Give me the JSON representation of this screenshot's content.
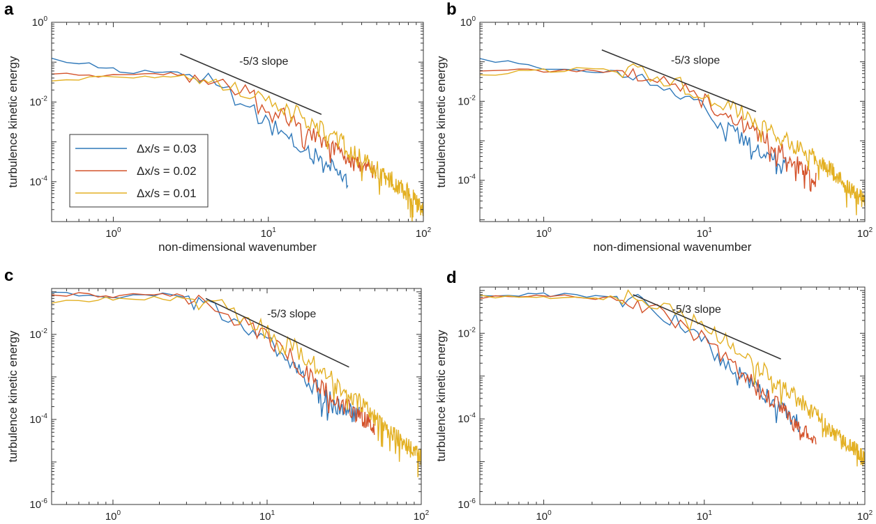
{
  "colors": {
    "dx003": "#2f78b9",
    "dx002": "#d4522a",
    "dx001": "#e3b023",
    "slope_line": "#333333",
    "axes": "#333333"
  },
  "chart_data": [
    {
      "panel": "a",
      "type": "line",
      "xscale": "log",
      "yscale": "log",
      "xlim": [
        0.4,
        100
      ],
      "ylim": [
        1e-05,
        1
      ],
      "xticks": [
        1,
        10,
        100
      ],
      "xtick_labels": [
        "10^0",
        "10^1",
        "10^2"
      ],
      "yticks": [
        0.0001,
        0.01,
        1
      ],
      "ytick_labels": [
        "10^-4",
        "10^-2",
        "10^0"
      ],
      "xlabel": "non-dimensional wavenumber",
      "ylabel": "turbulence kinetic energy",
      "legend": {
        "placement": "lower-left",
        "entries": [
          "Δx/s = 0.03",
          "Δx/s = 0.02",
          "Δx/s = 0.01"
        ]
      },
      "annotation": {
        "text": "-5/3 slope",
        "x": 6.5,
        "y": 0.085
      },
      "slope_line": {
        "x": [
          2.7,
          22
        ],
        "y": [
          0.16,
          0.0049
        ]
      },
      "series": [
        {
          "name": "Δx/s = 0.03",
          "key": "dx003",
          "x_end": 33,
          "noise": 0.22,
          "drops": true,
          "points": [
            [
              0.4,
              0.12
            ],
            [
              0.5,
              0.1
            ],
            [
              0.7,
              0.085
            ],
            [
              1,
              0.065
            ],
            [
              1.5,
              0.055
            ],
            [
              2,
              0.06
            ],
            [
              3,
              0.05
            ],
            [
              4,
              0.035
            ],
            [
              5,
              0.022
            ],
            [
              6,
              0.014
            ],
            [
              8,
              0.006
            ],
            [
              10,
              0.0028
            ],
            [
              13,
              0.0013
            ],
            [
              17,
              0.0006
            ],
            [
              22,
              0.00035
            ],
            [
              28,
              0.00022
            ],
            [
              33,
              0.0001
            ]
          ]
        },
        {
          "name": "Δx/s = 0.02",
          "key": "dx002",
          "x_end": 50,
          "noise": 0.2,
          "drops": true,
          "points": [
            [
              0.4,
              0.05
            ],
            [
              0.7,
              0.045
            ],
            [
              1,
              0.05
            ],
            [
              2,
              0.05
            ],
            [
              3,
              0.05
            ],
            [
              4,
              0.04
            ],
            [
              5,
              0.03
            ],
            [
              7,
              0.018
            ],
            [
              10,
              0.008
            ],
            [
              14,
              0.0035
            ],
            [
              20,
              0.0014
            ],
            [
              30,
              0.00045
            ],
            [
              40,
              0.00025
            ],
            [
              50,
              0.00018
            ]
          ]
        },
        {
          "name": "Δx/s = 0.01",
          "key": "dx001",
          "x_end": 100,
          "noise": 0.24,
          "drops": true,
          "points": [
            [
              0.4,
              0.035
            ],
            [
              0.7,
              0.04
            ],
            [
              1,
              0.045
            ],
            [
              2,
              0.045
            ],
            [
              3,
              0.045
            ],
            [
              4,
              0.04
            ],
            [
              6,
              0.025
            ],
            [
              8,
              0.015
            ],
            [
              10,
              0.01
            ],
            [
              15,
              0.005
            ],
            [
              20,
              0.0025
            ],
            [
              30,
              0.0009
            ],
            [
              40,
              0.00035
            ],
            [
              60,
              0.00012
            ],
            [
              80,
              5e-05
            ],
            [
              100,
              2e-05
            ]
          ]
        }
      ]
    },
    {
      "panel": "b",
      "type": "line",
      "xscale": "log",
      "yscale": "log",
      "xlim": [
        0.4,
        100
      ],
      "ylim": [
        9e-06,
        1
      ],
      "xticks": [
        1,
        10,
        100
      ],
      "xtick_labels": [
        "10^0",
        "10^1",
        "10^2"
      ],
      "yticks": [
        0.0001,
        0.01,
        1
      ],
      "ytick_labels": [
        "10^-4",
        "10^-2",
        "10^0"
      ],
      "xlabel": "non-dimensional wavenumber",
      "ylabel": "turbulence kinetic energy",
      "annotation": {
        "text": "-5/3 slope",
        "x": 6.2,
        "y": 0.09
      },
      "slope_line": {
        "x": [
          2.3,
          21
        ],
        "y": [
          0.2,
          0.0055
        ]
      },
      "series": [
        {
          "name": "Δx/s = 0.03",
          "key": "dx003",
          "x_end": 33,
          "noise": 0.2,
          "drops": true,
          "points": [
            [
              0.4,
              0.12
            ],
            [
              0.6,
              0.1
            ],
            [
              1,
              0.07
            ],
            [
              1.5,
              0.06
            ],
            [
              2,
              0.06
            ],
            [
              3,
              0.055
            ],
            [
              4,
              0.04
            ],
            [
              5,
              0.03
            ],
            [
              7,
              0.015
            ],
            [
              10,
              0.006
            ],
            [
              13,
              0.0025
            ],
            [
              17,
              0.0012
            ],
            [
              22,
              0.0006
            ],
            [
              28,
              0.00035
            ],
            [
              33,
              0.00025
            ]
          ]
        },
        {
          "name": "Δx/s = 0.02",
          "key": "dx002",
          "x_end": 50,
          "noise": 0.2,
          "drops": true,
          "points": [
            [
              0.4,
              0.06
            ],
            [
              0.7,
              0.06
            ],
            [
              1,
              0.06
            ],
            [
              2,
              0.06
            ],
            [
              3,
              0.06
            ],
            [
              4,
              0.05
            ],
            [
              6,
              0.03
            ],
            [
              8,
              0.018
            ],
            [
              10,
              0.01
            ],
            [
              15,
              0.004
            ],
            [
              20,
              0.0018
            ],
            [
              30,
              0.0006
            ],
            [
              40,
              0.00022
            ],
            [
              50,
              0.0001
            ]
          ]
        },
        {
          "name": "Δx/s = 0.01",
          "key": "dx001",
          "x_end": 100,
          "noise": 0.22,
          "drops": true,
          "points": [
            [
              0.4,
              0.05
            ],
            [
              0.7,
              0.055
            ],
            [
              1,
              0.06
            ],
            [
              2,
              0.065
            ],
            [
              3,
              0.06
            ],
            [
              4,
              0.05
            ],
            [
              6,
              0.035
            ],
            [
              8,
              0.022
            ],
            [
              10,
              0.015
            ],
            [
              15,
              0.007
            ],
            [
              20,
              0.0035
            ],
            [
              30,
              0.0012
            ],
            [
              40,
              0.0006
            ],
            [
              60,
              0.00022
            ],
            [
              80,
              6e-05
            ],
            [
              100,
              3e-05
            ]
          ]
        }
      ]
    },
    {
      "panel": "c",
      "type": "line",
      "xscale": "log",
      "yscale": "log",
      "xlim": [
        0.4,
        100
      ],
      "ylim": [
        1e-06,
        0.12
      ],
      "xticks": [
        1,
        10,
        100
      ],
      "xtick_labels": [
        "10^0",
        "10^1",
        "10^2"
      ],
      "yticks": [
        1e-06,
        0.0001,
        0.01
      ],
      "ytick_labels": [
        "10^-6",
        "10^-4",
        "10^-2"
      ],
      "xlabel": "non-dimensional wavenumber",
      "ylabel": "turbulence kinetic energy",
      "annotation": {
        "text": "-5/3 slope",
        "x": 10,
        "y": 0.025
      },
      "slope_line": {
        "x": [
          4,
          34
        ],
        "y": [
          0.07,
          0.0017
        ]
      },
      "series": [
        {
          "name": "Δx/s = 0.03",
          "key": "dx003",
          "x_end": 40,
          "noise": 0.22,
          "drops": true,
          "points": [
            [
              0.4,
              0.1
            ],
            [
              0.6,
              0.09
            ],
            [
              1,
              0.07
            ],
            [
              1.5,
              0.09
            ],
            [
              2,
              0.085
            ],
            [
              3,
              0.07
            ],
            [
              4,
              0.05
            ],
            [
              6,
              0.025
            ],
            [
              8,
              0.012
            ],
            [
              10,
              0.006
            ],
            [
              15,
              0.002
            ],
            [
              20,
              0.0006
            ],
            [
              25,
              0.0003
            ],
            [
              30,
              0.00018
            ],
            [
              40,
              0.00012
            ]
          ]
        },
        {
          "name": "Δx/s = 0.02",
          "key": "dx002",
          "x_end": 50,
          "noise": 0.22,
          "drops": true,
          "points": [
            [
              0.4,
              0.09
            ],
            [
              0.7,
              0.085
            ],
            [
              1,
              0.08
            ],
            [
              2,
              0.085
            ],
            [
              3,
              0.08
            ],
            [
              4,
              0.05
            ],
            [
              6,
              0.028
            ],
            [
              8,
              0.015
            ],
            [
              10,
              0.008
            ],
            [
              15,
              0.0025
            ],
            [
              20,
              0.0009
            ],
            [
              30,
              0.00025
            ],
            [
              40,
              0.00012
            ],
            [
              50,
              7e-05
            ]
          ]
        },
        {
          "name": "Δx/s = 0.01",
          "key": "dx001",
          "x_end": 100,
          "noise": 0.22,
          "drops": true,
          "points": [
            [
              0.4,
              0.06
            ],
            [
              0.7,
              0.065
            ],
            [
              1,
              0.07
            ],
            [
              2,
              0.07
            ],
            [
              3,
              0.07
            ],
            [
              4,
              0.05
            ],
            [
              6,
              0.035
            ],
            [
              8,
              0.02
            ],
            [
              10,
              0.012
            ],
            [
              15,
              0.005
            ],
            [
              20,
              0.002
            ],
            [
              30,
              0.0006
            ],
            [
              40,
              0.00025
            ],
            [
              60,
              6e-05
            ],
            [
              80,
              2.5e-05
            ],
            [
              100,
              1.3e-05
            ]
          ]
        }
      ]
    },
    {
      "panel": "d",
      "type": "line",
      "xscale": "log",
      "yscale": "log",
      "xlim": [
        0.4,
        100
      ],
      "ylim": [
        1e-06,
        0.12
      ],
      "xticks": [
        1,
        10,
        100
      ],
      "xtick_labels": [
        "10^0",
        "10^1",
        "10^2"
      ],
      "yticks": [
        1e-06,
        0.0001,
        0.01
      ],
      "ytick_labels": [
        "10^-6",
        "10^-4",
        "10^-2"
      ],
      "xlabel": "non-dimensional wavenumber",
      "ylabel": "turbulence kinetic energy",
      "annotation": {
        "text": "-5/3 slope",
        "x": 6.3,
        "y": 0.03
      },
      "slope_line": {
        "x": [
          3.6,
          30
        ],
        "y": [
          0.08,
          0.0025
        ]
      },
      "series": [
        {
          "name": "Δx/s = 0.03",
          "key": "dx003",
          "x_end": 40,
          "noise": 0.2,
          "drops": true,
          "points": [
            [
              0.4,
              0.08
            ],
            [
              0.7,
              0.08
            ],
            [
              1,
              0.08
            ],
            [
              2,
              0.075
            ],
            [
              3,
              0.065
            ],
            [
              4,
              0.05
            ],
            [
              5,
              0.035
            ],
            [
              7,
              0.018
            ],
            [
              10,
              0.006
            ],
            [
              15,
              0.0015
            ],
            [
              20,
              0.0006
            ],
            [
              30,
              0.00018
            ],
            [
              40,
              7e-05
            ]
          ]
        },
        {
          "name": "Δx/s = 0.02",
          "key": "dx002",
          "x_end": 50,
          "noise": 0.2,
          "drops": true,
          "points": [
            [
              0.4,
              0.07
            ],
            [
              0.7,
              0.075
            ],
            [
              1,
              0.08
            ],
            [
              2,
              0.07
            ],
            [
              3,
              0.065
            ],
            [
              4,
              0.05
            ],
            [
              6,
              0.025
            ],
            [
              8,
              0.012
            ],
            [
              10,
              0.007
            ],
            [
              15,
              0.0018
            ],
            [
              20,
              0.0007
            ],
            [
              30,
              0.00018
            ],
            [
              40,
              6e-05
            ],
            [
              50,
              3e-05
            ]
          ]
        },
        {
          "name": "Δx/s = 0.01",
          "key": "dx001",
          "x_end": 100,
          "noise": 0.2,
          "drops": true,
          "points": [
            [
              0.4,
              0.07
            ],
            [
              0.7,
              0.075
            ],
            [
              1,
              0.07
            ],
            [
              2,
              0.065
            ],
            [
              3,
              0.07
            ],
            [
              4,
              0.06
            ],
            [
              6,
              0.04
            ],
            [
              8,
              0.025
            ],
            [
              10,
              0.015
            ],
            [
              15,
              0.005
            ],
            [
              20,
              0.0022
            ],
            [
              30,
              0.0006
            ],
            [
              40,
              0.00025
            ],
            [
              60,
              6e-05
            ],
            [
              80,
              2.5e-05
            ],
            [
              100,
              1.2e-05
            ]
          ]
        }
      ]
    }
  ]
}
